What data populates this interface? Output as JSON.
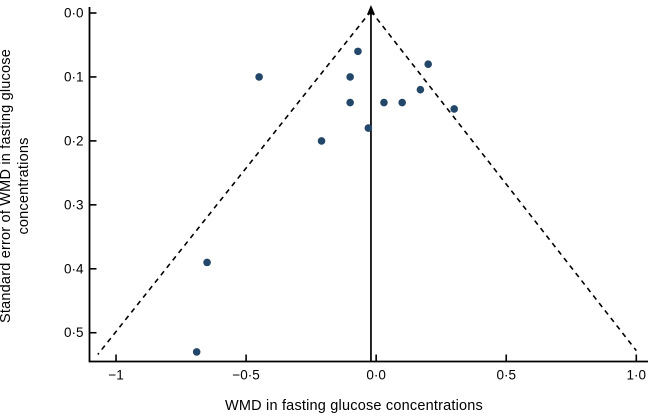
{
  "chart_data": {
    "type": "scatter",
    "subtype": "funnel-plot",
    "title": "",
    "xlabel": "WMD in fasting glucose concentrations",
    "ylabel": "Standard error of WMD in fasting glucose concentrations",
    "ylabel_line1": "Standard error of WMD in fasting glucose",
    "ylabel_line2": "concentrations",
    "xlim": [
      -1.102,
      1.045
    ],
    "ylim": [
      0,
      0.545
    ],
    "y_inverted": true,
    "grid": false,
    "legend": "none",
    "x_ticks": [
      {
        "v": -1,
        "label": "−1"
      },
      {
        "v": -0.5,
        "label": "−0·5"
      },
      {
        "v": 0,
        "label": "0·0"
      },
      {
        "v": 0.5,
        "label": "0·5"
      },
      {
        "v": 1,
        "label": "1·0"
      }
    ],
    "y_ticks": [
      {
        "v": 0,
        "label": "0·0"
      },
      {
        "v": 0.1,
        "label": "0·1"
      },
      {
        "v": 0.2,
        "label": "0·2"
      },
      {
        "v": 0.3,
        "label": "0·3"
      },
      {
        "v": 0.4,
        "label": "0·4"
      },
      {
        "v": 0.5,
        "label": "0·5"
      }
    ],
    "points": [
      {
        "x": -0.07,
        "y": 0.06
      },
      {
        "x": 0.2,
        "y": 0.08
      },
      {
        "x": -0.45,
        "y": 0.1
      },
      {
        "x": -0.1,
        "y": 0.1
      },
      {
        "x": 0.17,
        "y": 0.12
      },
      {
        "x": -0.1,
        "y": 0.14
      },
      {
        "x": 0.03,
        "y": 0.14
      },
      {
        "x": 0.1,
        "y": 0.14
      },
      {
        "x": 0.3,
        "y": 0.15
      },
      {
        "x": -0.03,
        "y": 0.18
      },
      {
        "x": -0.21,
        "y": 0.2
      },
      {
        "x": -0.65,
        "y": 0.39
      },
      {
        "x": -0.69,
        "y": 0.53
      }
    ],
    "pooled_estimate_x": -0.02,
    "funnel_lines": [
      {
        "x1": -0.02,
        "y1": -0.003,
        "x2": -1.07,
        "y2": 0.534
      },
      {
        "x1": -0.02,
        "y1": -0.003,
        "x2": 1.0,
        "y2": 0.528
      }
    ],
    "colors": {
      "point": "#234768",
      "line": "#000000",
      "background": "#ffffff"
    }
  }
}
